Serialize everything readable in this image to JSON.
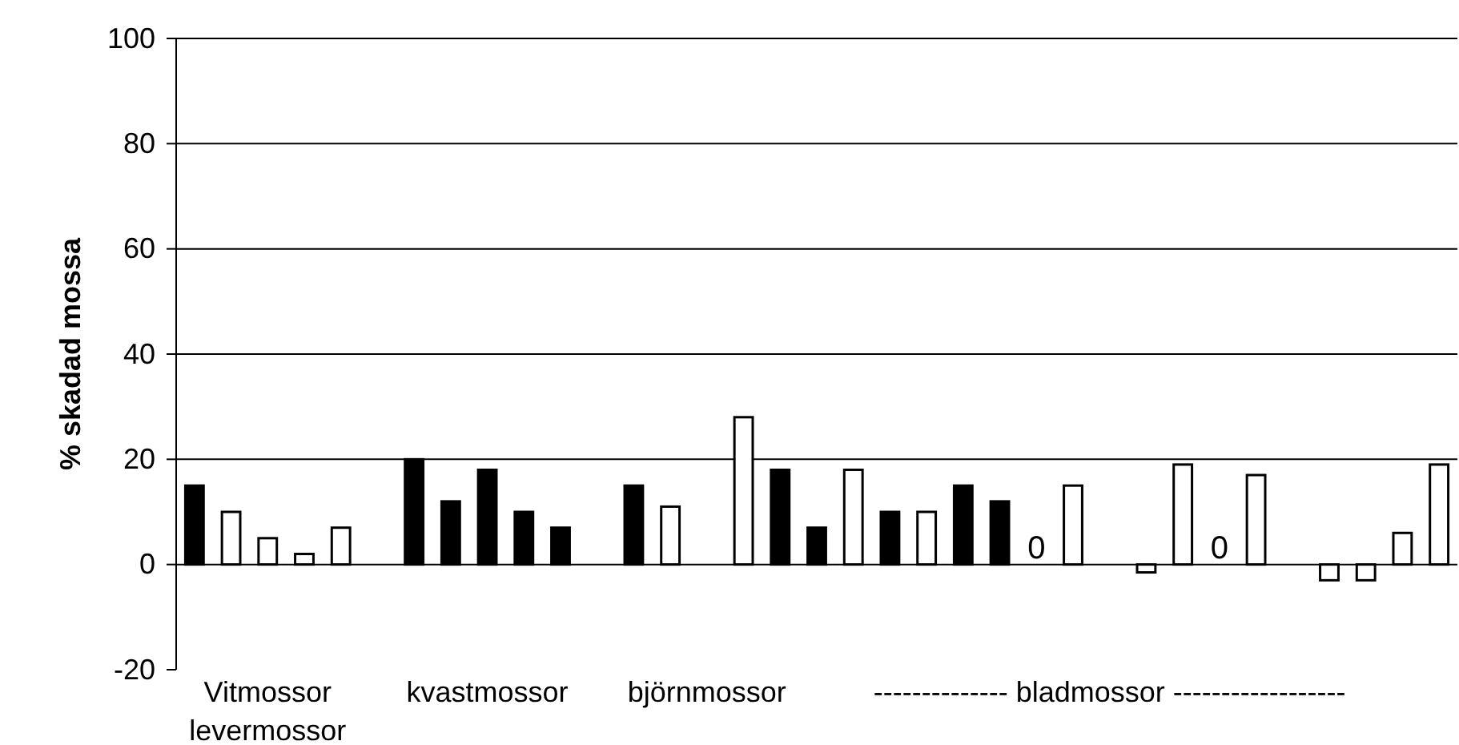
{
  "chart_data": {
    "type": "bar",
    "ylabel": "% skadad mossa",
    "categories": [
      null,
      null,
      "Vitmossor levermossor",
      null,
      null,
      null,
      null,
      null,
      "kvastmossor",
      null,
      null,
      null,
      null,
      null,
      "björnmossor",
      null,
      null,
      null,
      null,
      null,
      null,
      null,
      null,
      null,
      null,
      "-------------- bladmossor ------------------",
      null,
      null,
      null,
      null,
      null,
      null,
      null,
      null,
      null
    ],
    "values": [
      15,
      10,
      5,
      2,
      7,
      null,
      20,
      12,
      18,
      10,
      7,
      null,
      15,
      11,
      null,
      28,
      18,
      7,
      18,
      10,
      10,
      15,
      12,
      0,
      15,
      null,
      -1.5,
      19,
      0,
      17,
      null,
      -3,
      -3,
      6,
      19
    ],
    "colors": [
      "#000000",
      "#ffffff",
      "#ffffff",
      "#ffffff",
      "#ffffff",
      null,
      "#000000",
      "#000000",
      "#000000",
      "#000000",
      "#000000",
      null,
      "#000000",
      "#ffffff",
      null,
      "#ffffff",
      "#000000",
      "#000000",
      "#ffffff",
      "#000000",
      "#ffffff",
      "#000000",
      "#000000",
      null,
      "#ffffff",
      null,
      "#ffffff",
      "#ffffff",
      null,
      "#ffffff",
      null,
      "#ffffff",
      "#ffffff",
      "#ffffff",
      "#ffffff"
    ],
    "value_labels": [
      null,
      null,
      null,
      null,
      null,
      null,
      null,
      null,
      null,
      null,
      null,
      null,
      null,
      null,
      null,
      null,
      null,
      null,
      null,
      null,
      null,
      null,
      null,
      "0",
      null,
      null,
      null,
      null,
      "0",
      null,
      null,
      null,
      null,
      null,
      null
    ],
    "ylim": [
      -20,
      100
    ],
    "yticks": [
      -20,
      0,
      20,
      40,
      60,
      80,
      100
    ],
    "grid": "y"
  }
}
